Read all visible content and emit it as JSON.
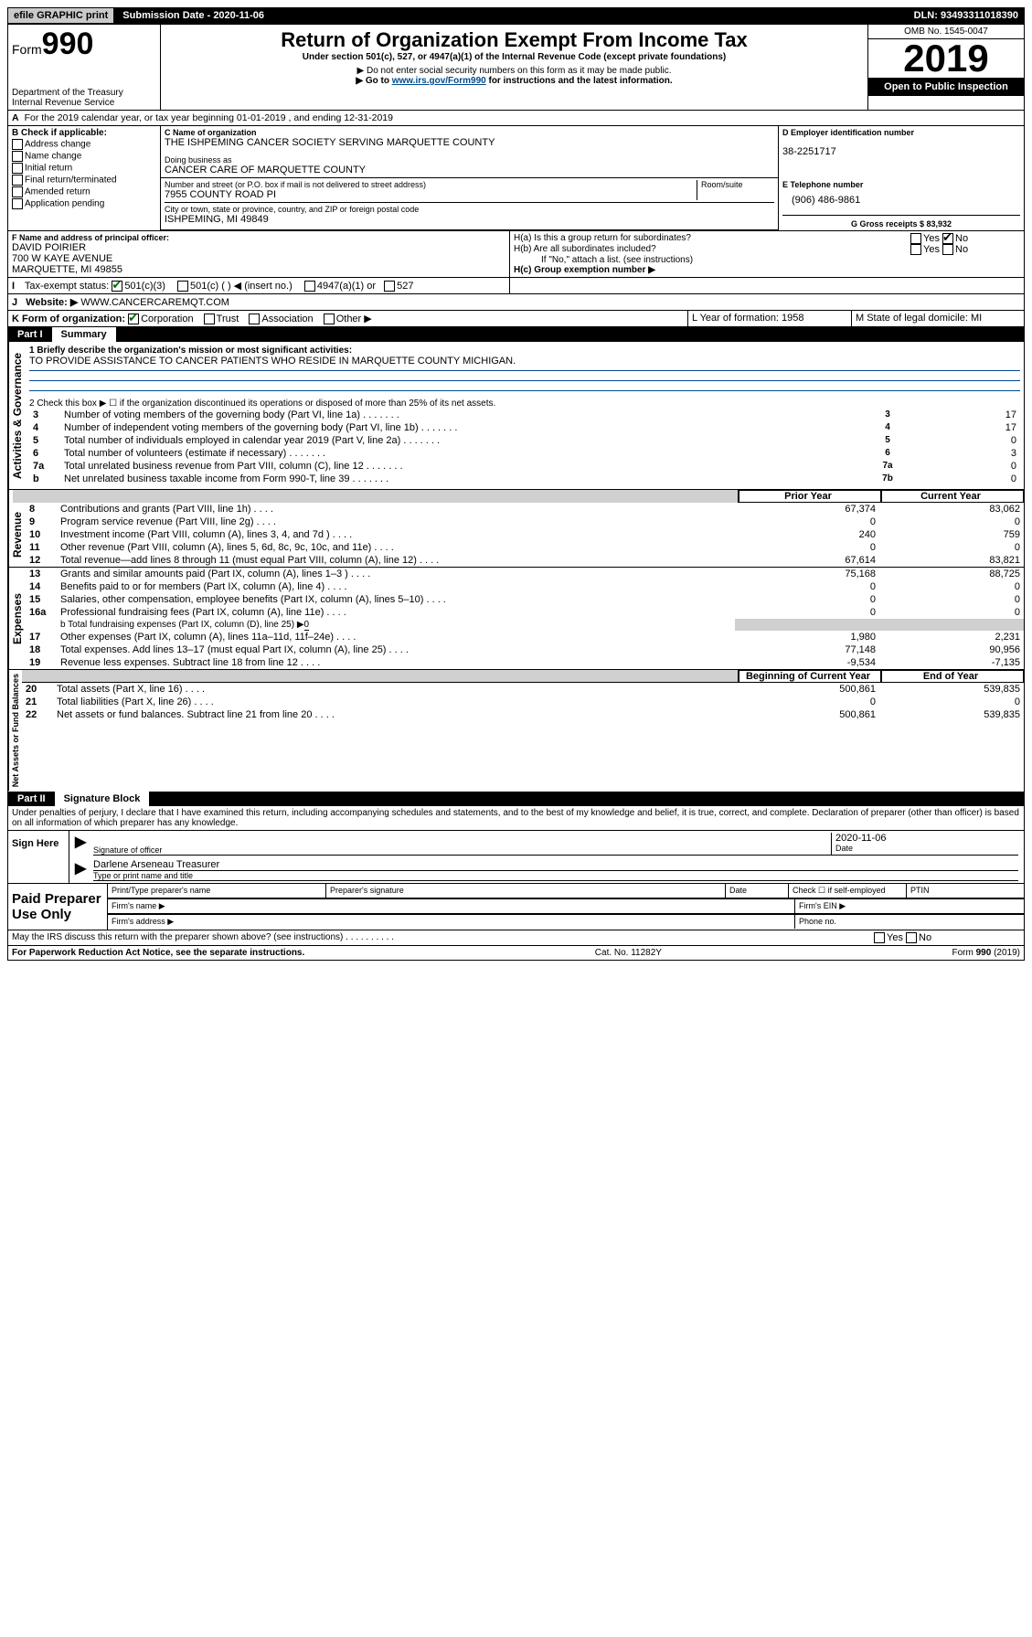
{
  "topbar": {
    "efile": "efile GRAPHIC print",
    "sub_label": "Submission Date - 2020-11-06",
    "dln": "DLN: 93493311018390"
  },
  "header": {
    "form_prefix": "Form",
    "form_num": "990",
    "dept1": "Department of the Treasury",
    "dept2": "Internal Revenue Service",
    "title": "Return of Organization Exempt From Income Tax",
    "subtitle": "Under section 501(c), 527, or 4947(a)(1) of the Internal Revenue Code (except private foundations)",
    "warn1": "▶ Do not enter social security numbers on this form as it may be made public.",
    "warn2_pre": "▶ Go to ",
    "warn2_link": "www.irs.gov/Form990",
    "warn2_post": " for instructions and the latest information.",
    "omb": "OMB No. 1545-0047",
    "year": "2019",
    "open": "Open to Public Inspection"
  },
  "sectionA": "For the 2019 calendar year, or tax year beginning 01-01-2019   , and ending 12-31-2019",
  "B": {
    "heading": "B Check if applicable:",
    "opts": [
      "Address change",
      "Name change",
      "Initial return",
      "Final return/terminated",
      "Amended return",
      "Application pending"
    ]
  },
  "C": {
    "label": "C Name of organization",
    "name": "THE ISHPEMING CANCER SOCIETY SERVING MARQUETTE COUNTY",
    "dba_label": "Doing business as",
    "dba": "CANCER CARE OF MARQUETTE COUNTY",
    "addr_label": "Number and street (or P.O. box if mail is not delivered to street address)",
    "room_label": "Room/suite",
    "addr": "7955 COUNTY ROAD PI",
    "city_label": "City or town, state or province, country, and ZIP or foreign postal code",
    "city": "ISHPEMING, MI  49849"
  },
  "D": {
    "label": "D Employer identification number",
    "ein": "38-2251717"
  },
  "E": {
    "label": "E Telephone number",
    "phone": "(906) 486-9861"
  },
  "G": {
    "label": "G Gross receipts $ 83,932"
  },
  "F": {
    "label": "F  Name and address of principal officer:",
    "name": "DAVID POIRIER",
    "addr1": "700 W KAYE AVENUE",
    "addr2": "MARQUETTE, MI  49855"
  },
  "H": {
    "a": "H(a)  Is this a group return for subordinates?",
    "b": "H(b)  Are all subordinates included?",
    "b_note": "If \"No,\" attach a list. (see instructions)",
    "c": "H(c)  Group exemption number ▶"
  },
  "I": {
    "label": "Tax-exempt status:",
    "opt1": "501(c)(3)",
    "opt2": "501(c) (   ) ◀ (insert no.)",
    "opt3": "4947(a)(1) or",
    "opt4": "527"
  },
  "J": {
    "label": "Website: ▶",
    "url": "WWW.CANCERCAREMQT.COM"
  },
  "K": {
    "label": "K Form of organization:",
    "opts": [
      "Corporation",
      "Trust",
      "Association",
      "Other ▶"
    ]
  },
  "L": {
    "label": "L Year of formation: 1958"
  },
  "M": {
    "label": "M State of legal domicile: MI"
  },
  "partI": {
    "tag": "Part I",
    "title": "Summary",
    "q1_label": "1  Briefly describe the organization's mission or most significant activities:",
    "q1_text": "TO PROVIDE ASSISTANCE TO CANCER PATIENTS WHO RESIDE IN MARQUETTE COUNTY MICHIGAN.",
    "q2": "2   Check this box ▶ ☐  if the organization discontinued its operations or disposed of more than 25% of its net assets.",
    "governance_label": "Activities & Governance",
    "revenue_label": "Revenue",
    "expense_label": "Expenses",
    "net_label": "Net Assets or Fund Balances",
    "prior_col": "Prior Year",
    "current_col": "Current Year",
    "boy_col": "Beginning of Current Year",
    "eoy_col": "End of Year",
    "rows_top": [
      {
        "n": "3",
        "text": "Number of voting members of the governing body (Part VI, line 1a)",
        "box": "3",
        "val": "17"
      },
      {
        "n": "4",
        "text": "Number of independent voting members of the governing body (Part VI, line 1b)",
        "box": "4",
        "val": "17"
      },
      {
        "n": "5",
        "text": "Total number of individuals employed in calendar year 2019 (Part V, line 2a)",
        "box": "5",
        "val": "0"
      },
      {
        "n": "6",
        "text": "Total number of volunteers (estimate if necessary)",
        "box": "6",
        "val": "3"
      },
      {
        "n": "7a",
        "text": "Total unrelated business revenue from Part VIII, column (C), line 12",
        "box": "7a",
        "val": "0"
      },
      {
        "n": "b",
        "text": "Net unrelated business taxable income from Form 990-T, line 39",
        "box": "7b",
        "val": "0"
      }
    ],
    "rows_rev": [
      {
        "n": "8",
        "text": "Contributions and grants (Part VIII, line 1h)",
        "py": "67,374",
        "cy": "83,062"
      },
      {
        "n": "9",
        "text": "Program service revenue (Part VIII, line 2g)",
        "py": "0",
        "cy": "0"
      },
      {
        "n": "10",
        "text": "Investment income (Part VIII, column (A), lines 3, 4, and 7d )",
        "py": "240",
        "cy": "759"
      },
      {
        "n": "11",
        "text": "Other revenue (Part VIII, column (A), lines 5, 6d, 8c, 9c, 10c, and 11e)",
        "py": "0",
        "cy": "0"
      },
      {
        "n": "12",
        "text": "Total revenue—add lines 8 through 11 (must equal Part VIII, column (A), line 12)",
        "py": "67,614",
        "cy": "83,821"
      }
    ],
    "rows_exp": [
      {
        "n": "13",
        "text": "Grants and similar amounts paid (Part IX, column (A), lines 1–3 )",
        "py": "75,168",
        "cy": "88,725"
      },
      {
        "n": "14",
        "text": "Benefits paid to or for members (Part IX, column (A), line 4)",
        "py": "0",
        "cy": "0"
      },
      {
        "n": "15",
        "text": "Salaries, other compensation, employee benefits (Part IX, column (A), lines 5–10)",
        "py": "0",
        "cy": "0"
      },
      {
        "n": "16a",
        "text": "Professional fundraising fees (Part IX, column (A), line 11e)",
        "py": "0",
        "cy": "0"
      }
    ],
    "row_16b_label": "b  Total fundraising expenses (Part IX, column (D), line 25) ▶",
    "row_16b_val": "0",
    "rows_exp2": [
      {
        "n": "17",
        "text": "Other expenses (Part IX, column (A), lines 11a–11d, 11f–24e)",
        "py": "1,980",
        "cy": "2,231"
      },
      {
        "n": "18",
        "text": "Total expenses. Add lines 13–17 (must equal Part IX, column (A), line 25)",
        "py": "77,148",
        "cy": "90,956"
      },
      {
        "n": "19",
        "text": "Revenue less expenses. Subtract line 18 from line 12",
        "py": "-9,534",
        "cy": "-7,135"
      }
    ],
    "rows_net": [
      {
        "n": "20",
        "text": "Total assets (Part X, line 16)",
        "py": "500,861",
        "cy": "539,835"
      },
      {
        "n": "21",
        "text": "Total liabilities (Part X, line 26)",
        "py": "0",
        "cy": "0"
      },
      {
        "n": "22",
        "text": "Net assets or fund balances. Subtract line 21 from line 20",
        "py": "500,861",
        "cy": "539,835"
      }
    ]
  },
  "partII": {
    "tag": "Part II",
    "title": "Signature Block",
    "perjury": "Under penalties of perjury, I declare that I have examined this return, including accompanying schedules and statements, and to the best of my knowledge and belief, it is true, correct, and complete. Declaration of preparer (other than officer) is based on all information of which preparer has any knowledge.",
    "sign_here": "Sign Here",
    "sig_officer": "Signature of officer",
    "sig_date_label": "Date",
    "sig_date": "2020-11-06",
    "name_title_val": "Darlene Arseneau  Treasurer",
    "name_title_label": "Type or print name and title",
    "paid": "Paid Preparer Use Only",
    "prep_name": "Print/Type preparer's name",
    "prep_sig": "Preparer's signature",
    "prep_date": "Date",
    "prep_check": "Check ☐ if self-employed",
    "ptin": "PTIN",
    "firm_name": "Firm's name  ▶",
    "firm_ein": "Firm's EIN ▶",
    "firm_addr": "Firm's address ▶",
    "firm_phone": "Phone no.",
    "discuss": "May the IRS discuss this return with the preparer shown above? (see instructions)",
    "yes": "Yes",
    "no": "No"
  },
  "footer": {
    "paperwork": "For Paperwork Reduction Act Notice, see the separate instructions.",
    "cat": "Cat. No. 11282Y",
    "form": "Form 990 (2019)"
  },
  "yn": {
    "yes": "Yes",
    "no": "No"
  }
}
